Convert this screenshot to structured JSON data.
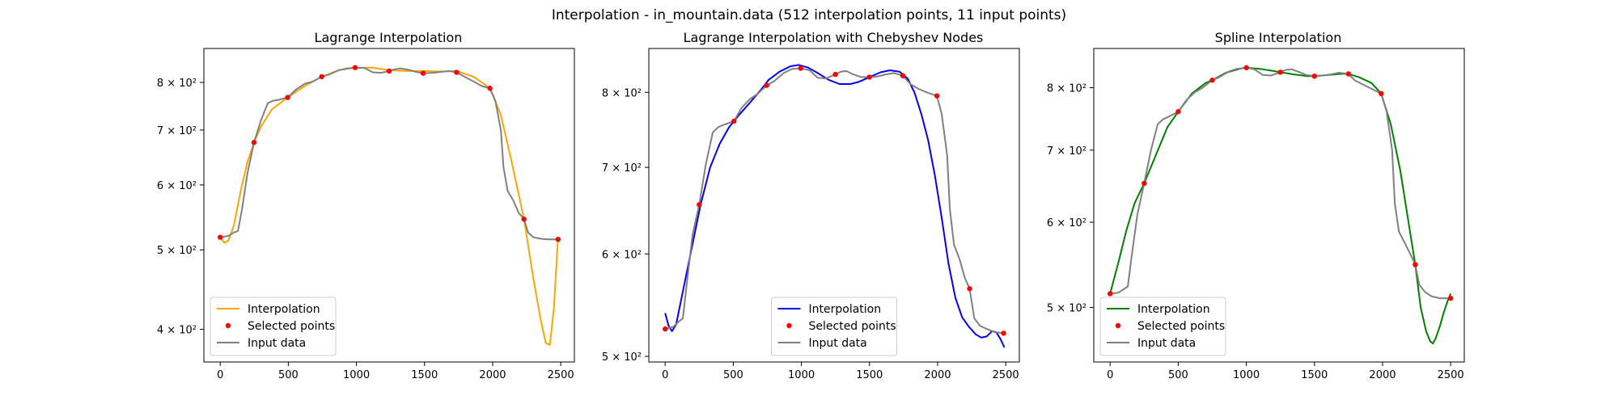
{
  "figure": {
    "suptitle": "Interpolation - in_mountain.data (512 interpolation points, 11 input points)"
  },
  "chart_data": [
    {
      "type": "line",
      "title": "Lagrange Interpolation",
      "xlabel": "",
      "ylabel": "",
      "xlim": [
        -120,
        2600
      ],
      "ylim": [
        365,
        880
      ],
      "yscale": "log",
      "xticks": [
        0,
        500,
        1000,
        1500,
        2000,
        2500
      ],
      "xtick_labels": [
        "0",
        "500",
        "1000",
        "1500",
        "2000",
        "2500"
      ],
      "yticks": [
        400,
        500,
        600,
        700,
        800
      ],
      "ytick_labels": [
        "4 × 10²",
        "5 × 10²",
        "6 × 10²",
        "7 × 10²",
        "8 × 10²"
      ],
      "legend": {
        "position": "lower-left",
        "entries": [
          "Interpolation",
          "Selected points",
          "Input data"
        ]
      },
      "series": [
        {
          "name": "Interpolation",
          "kind": "line",
          "color": "#ffa500",
          "x": [
            0,
            30,
            60,
            100,
            150,
            200,
            248,
            300,
            380,
            495,
            620,
            745,
            870,
            990,
            1120,
            1240,
            1360,
            1490,
            1610,
            1735,
            1860,
            1980,
            2060,
            2140,
            2230,
            2300,
            2350,
            2390,
            2420,
            2450,
            2480
          ],
          "y": [
            518,
            510,
            513,
            535,
            590,
            640,
            676,
            707,
            742,
            767,
            792,
            813,
            828,
            834,
            834,
            828,
            826,
            826,
            825,
            826,
            813,
            787,
            730,
            640,
            545,
            460,
            413,
            385,
            383,
            425,
            518
          ]
        },
        {
          "name": "Selected points",
          "kind": "scatter",
          "color": "#ff0000",
          "x": [
            0,
            248,
            495,
            745,
            990,
            1240,
            1490,
            1735,
            1980,
            2230,
            2480
          ],
          "y": [
            518,
            676,
            767,
            813,
            834,
            826,
            821,
            823,
            787,
            545,
            515
          ]
        },
        {
          "name": "Input data",
          "kind": "line",
          "color": "#808080",
          "x": [
            0,
            60,
            100,
            130,
            160,
            200,
            248,
            300,
            350,
            390,
            430,
            495,
            560,
            620,
            680,
            745,
            800,
            870,
            930,
            990,
            1060,
            1120,
            1180,
            1240,
            1280,
            1320,
            1380,
            1440,
            1490,
            1560,
            1620,
            1680,
            1735,
            1800,
            1860,
            1920,
            1980,
            2020,
            2060,
            2080,
            2110,
            2150,
            2190,
            2230,
            2260,
            2300,
            2350,
            2400,
            2480
          ],
          "y": [
            518,
            520,
            525,
            527,
            560,
            620,
            676,
            720,
            755,
            760,
            762,
            767,
            785,
            797,
            802,
            813,
            818,
            828,
            832,
            834,
            833,
            823,
            822,
            826,
            830,
            832,
            829,
            824,
            821,
            822,
            824,
            826,
            823,
            812,
            802,
            792,
            787,
            760,
            700,
            630,
            590,
            575,
            555,
            545,
            525,
            518,
            516,
            515,
            515
          ]
        }
      ]
    },
    {
      "type": "line",
      "title": "Lagrange Interpolation with Chebyshev Nodes",
      "xlabel": "",
      "ylabel": "",
      "xlim": [
        -120,
        2600
      ],
      "ylim": [
        495,
        865
      ],
      "yscale": "log",
      "xticks": [
        0,
        500,
        1000,
        1500,
        2000,
        2500
      ],
      "xtick_labels": [
        "0",
        "500",
        "1000",
        "1500",
        "2000",
        "2500"
      ],
      "yticks": [
        500,
        600,
        700,
        800
      ],
      "ytick_labels": [
        "5 × 10²",
        "6 × 10²",
        "7 × 10²",
        "8 × 10²"
      ],
      "legend": {
        "position": "lower-center",
        "entries": [
          "Interpolation",
          "Selected points",
          "Input data"
        ]
      },
      "series": [
        {
          "name": "Interpolation",
          "kind": "line",
          "color": "#0000ff",
          "x": [
            0,
            25,
            50,
            80,
            110,
            150,
            200,
            260,
            330,
            400,
            470,
            540,
            620,
            700,
            760,
            840,
            920,
            980,
            1050,
            1120,
            1200,
            1280,
            1360,
            1420,
            1500,
            1580,
            1650,
            1720,
            1780,
            1830,
            1880,
            1930,
            1980,
            2030,
            2080,
            2130,
            2180,
            2230,
            2280,
            2320,
            2360,
            2400,
            2430,
            2460,
            2490
          ],
          "y": [
            540,
            528,
            523,
            529,
            548,
            575,
            610,
            655,
            700,
            730,
            752,
            768,
            785,
            803,
            818,
            830,
            838,
            840,
            836,
            828,
            818,
            812,
            812,
            815,
            822,
            829,
            832,
            830,
            820,
            800,
            770,
            735,
            690,
            640,
            590,
            555,
            536,
            527,
            520,
            517,
            518,
            523,
            522,
            516,
            508
          ]
        },
        {
          "name": "Selected points",
          "kind": "scatter",
          "color": "#ff0000",
          "x": [
            0,
            250,
            505,
            745,
            995,
            1250,
            1500,
            1745,
            1995,
            2235,
            2485
          ],
          "y": [
            525,
            655,
            760,
            810,
            835,
            826,
            822,
            824,
            795,
            564,
            521
          ]
        },
        {
          "name": "Input data",
          "kind": "line",
          "color": "#808080",
          "x": [
            0,
            60,
            100,
            130,
            160,
            200,
            250,
            300,
            350,
            390,
            430,
            505,
            560,
            620,
            680,
            745,
            800,
            870,
            930,
            995,
            1060,
            1120,
            1180,
            1250,
            1290,
            1330,
            1380,
            1440,
            1500,
            1560,
            1620,
            1680,
            1745,
            1800,
            1860,
            1920,
            1995,
            2030,
            2070,
            2090,
            2120,
            2160,
            2200,
            2235,
            2270,
            2310,
            2360,
            2420,
            2485
          ],
          "y": [
            525,
            527,
            532,
            535,
            570,
            620,
            655,
            705,
            745,
            752,
            755,
            760,
            778,
            790,
            798,
            810,
            816,
            828,
            834,
            835,
            832,
            821,
            820,
            826,
            830,
            831,
            826,
            822,
            822,
            823,
            826,
            828,
            824,
            812,
            805,
            800,
            795,
            770,
            715,
            650,
            610,
            595,
            575,
            564,
            535,
            528,
            525,
            522,
            521
          ]
        }
      ]
    },
    {
      "type": "line",
      "title": "Spline Interpolation",
      "xlabel": "",
      "ylabel": "",
      "xlim": [
        -120,
        2600
      ],
      "ylim": [
        445,
        870
      ],
      "yscale": "log",
      "xticks": [
        0,
        500,
        1000,
        1500,
        2000,
        2500
      ],
      "xtick_labels": [
        "0",
        "500",
        "1000",
        "1500",
        "2000",
        "2500"
      ],
      "yticks": [
        500,
        600,
        700,
        800
      ],
      "ytick_labels": [
        "5 × 10²",
        "6 × 10²",
        "7 × 10²",
        "8 × 10²"
      ],
      "legend": {
        "position": "lower-left",
        "entries": [
          "Interpolation",
          "Selected points",
          "Input data"
        ]
      },
      "series": [
        {
          "name": "Interpolation",
          "kind": "line",
          "color": "#008000",
          "x": [
            0,
            60,
            120,
            180,
            250,
            330,
            420,
            500,
            600,
            700,
            750,
            850,
            950,
            1000,
            1100,
            1200,
            1250,
            1350,
            1450,
            1500,
            1600,
            1700,
            1750,
            1830,
            1920,
            1990,
            2060,
            2130,
            2200,
            2240,
            2280,
            2320,
            2350,
            2370,
            2390,
            2420,
            2450,
            2480,
            2500
          ],
          "y": [
            515,
            550,
            590,
            625,
            652,
            690,
            735,
            760,
            790,
            808,
            813,
            826,
            833,
            835,
            833,
            829,
            827,
            823,
            820,
            820,
            822,
            824,
            824,
            818,
            808,
            790,
            740,
            670,
            590,
            548,
            500,
            475,
            465,
            463,
            468,
            480,
            495,
            508,
            515
          ]
        },
        {
          "name": "Selected points",
          "kind": "scatter",
          "color": "#ff0000",
          "x": [
            0,
            250,
            500,
            750,
            1000,
            1250,
            1500,
            1750,
            1990,
            2240,
            2500
          ],
          "y": [
            515,
            652,
            760,
            813,
            835,
            827,
            820,
            824,
            790,
            548,
            510
          ]
        },
        {
          "name": "Input data",
          "kind": "line",
          "color": "#808080",
          "x": [
            0,
            60,
            100,
            130,
            160,
            200,
            250,
            300,
            350,
            390,
            430,
            500,
            560,
            620,
            680,
            750,
            800,
            870,
            930,
            1000,
            1060,
            1120,
            1180,
            1250,
            1290,
            1330,
            1380,
            1440,
            1500,
            1560,
            1620,
            1680,
            1750,
            1800,
            1860,
            1920,
            1990,
            2030,
            2070,
            2090,
            2120,
            2160,
            2200,
            2240,
            2270,
            2310,
            2360,
            2420,
            2500
          ],
          "y": [
            515,
            516,
            520,
            523,
            560,
            610,
            652,
            700,
            740,
            748,
            752,
            760,
            779,
            792,
            800,
            813,
            818,
            828,
            833,
            835,
            832,
            822,
            821,
            827,
            831,
            832,
            828,
            822,
            820,
            821,
            823,
            826,
            824,
            812,
            805,
            798,
            790,
            760,
            700,
            625,
            588,
            575,
            562,
            548,
            525,
            517,
            512,
            510,
            510
          ]
        }
      ]
    }
  ]
}
